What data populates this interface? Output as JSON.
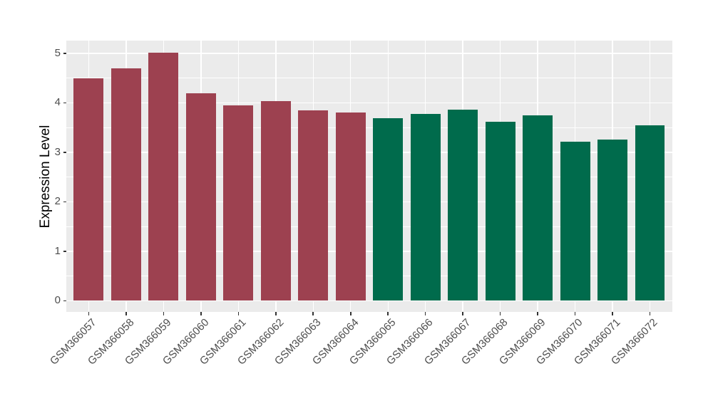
{
  "chart_data": {
    "type": "bar",
    "title": "",
    "xlabel": "",
    "ylabel": "Expression Level",
    "categories": [
      "GSM366057",
      "GSM366058",
      "GSM366059",
      "GSM366060",
      "GSM366061",
      "GSM366062",
      "GSM366063",
      "GSM366064",
      "GSM366065",
      "GSM366066",
      "GSM366067",
      "GSM366068",
      "GSM366069",
      "GSM366070",
      "GSM366071",
      "GSM366072"
    ],
    "values": [
      4.49,
      4.69,
      5.01,
      4.19,
      3.94,
      4.04,
      3.84,
      3.81,
      3.69,
      3.77,
      3.86,
      3.61,
      3.75,
      3.21,
      3.25,
      3.54
    ],
    "bar_colors": [
      "#9d4150",
      "#9d4150",
      "#9d4150",
      "#9d4150",
      "#9d4150",
      "#9d4150",
      "#9d4150",
      "#9d4150",
      "#006b4c",
      "#006b4c",
      "#006b4c",
      "#006b4c",
      "#006b4c",
      "#006b4c",
      "#006b4c",
      "#006b4c"
    ],
    "group_palette": {
      "left-group": "#9d4150",
      "right-group": "#006b4c"
    },
    "yticks": [
      0,
      1,
      2,
      3,
      4,
      5
    ],
    "minor_ytick_step": 0.5,
    "ylim": [
      -0.25,
      5.26
    ],
    "x_tick_label_rotation_deg": 45,
    "legend_position": "none",
    "grid": {
      "color": "#ffffff",
      "panel_background": "#ebebeb",
      "vertical_gridlines": "one per category"
    }
  }
}
